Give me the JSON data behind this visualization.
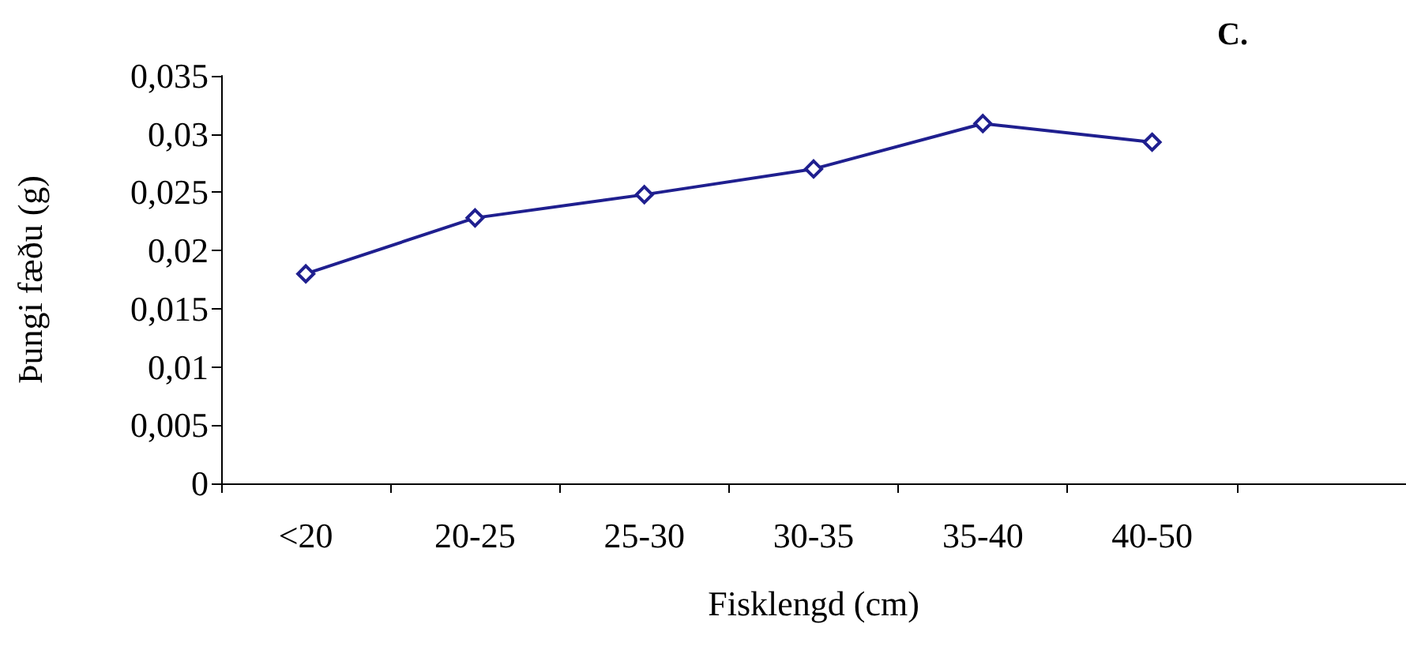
{
  "chart_data": {
    "type": "line",
    "xlabel": "Fisklengd (cm)",
    "ylabel": "Þungi fæðu (g)",
    "annotations": [
      "C."
    ],
    "categories": [
      "<20",
      "20-25",
      "25-30",
      "30-35",
      "35-40",
      "40-50"
    ],
    "series": [
      {
        "color": "#1f1f8f",
        "values": [
          0.018,
          0.0228,
          0.0248,
          0.027,
          0.0309,
          0.0293
        ]
      }
    ],
    "ylim": [
      0,
      0.035
    ],
    "yticks": [
      {
        "value": 0,
        "label": "0"
      },
      {
        "value": 0.005,
        "label": "0,005"
      },
      {
        "value": 0.01,
        "label": "0,01"
      },
      {
        "value": 0.015,
        "label": "0,015"
      },
      {
        "value": 0.02,
        "label": "0,02"
      },
      {
        "value": 0.025,
        "label": "0,025"
      },
      {
        "value": 0.03,
        "label": "0,03"
      },
      {
        "value": 0.035,
        "label": "0,035"
      }
    ],
    "grid": false,
    "marker": "diamond",
    "line_style": "solid"
  }
}
